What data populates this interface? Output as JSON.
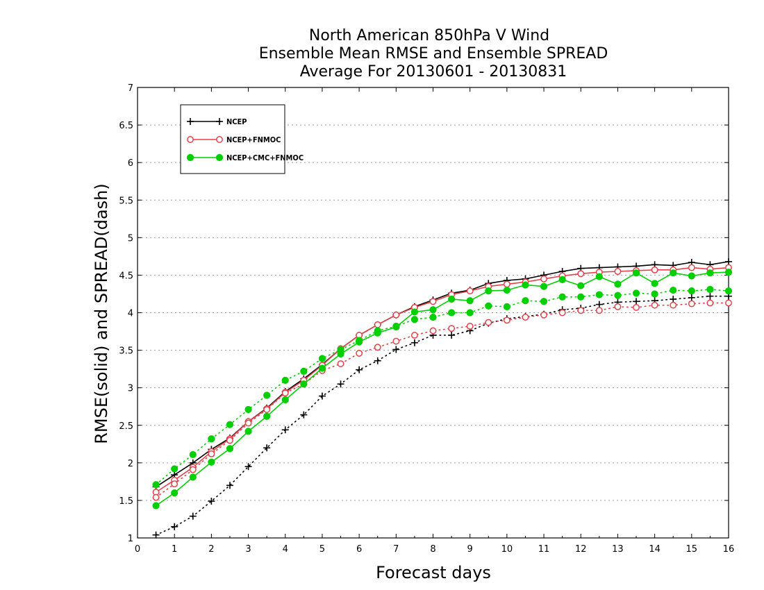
{
  "chart_data": {
    "type": "line",
    "title": [
      "North American 850hPa V Wind",
      "Ensemble Mean RMSE and Ensemble SPREAD",
      "Average For 20130601 - 20130831"
    ],
    "xlabel": "Forecast days",
    "ylabel": "RMSE(solid) and SPREAD(dash)",
    "xlim": [
      0,
      16
    ],
    "ylim": [
      1,
      7
    ],
    "x_ticks": [
      "0",
      "1",
      "2",
      "3",
      "4",
      "5",
      "6",
      "7",
      "8",
      "9",
      "10",
      "11",
      "12",
      "13",
      "14",
      "15",
      "16"
    ],
    "y_ticks": [
      "1",
      "1.5",
      "2",
      "2.5",
      "3",
      "3.5",
      "4",
      "4.5",
      "5",
      "5.5",
      "6",
      "6.5",
      "7"
    ],
    "grid": true,
    "legend_position": "top-left",
    "x": [
      0.5,
      1,
      1.5,
      2,
      2.5,
      3,
      3.5,
      4,
      4.5,
      5,
      5.5,
      6,
      6.5,
      7,
      7.5,
      8,
      8.5,
      9,
      9.5,
      10,
      10.5,
      11,
      11.5,
      12,
      12.5,
      13,
      13.5,
      14,
      14.5,
      15,
      15.5,
      16
    ],
    "series": [
      {
        "name": "NCEP",
        "color": "#000000",
        "marker": "plus",
        "rmse": [
          1.68,
          1.84,
          2.0,
          2.18,
          2.33,
          2.55,
          2.73,
          2.95,
          3.12,
          3.31,
          3.52,
          3.7,
          3.84,
          3.97,
          4.08,
          4.17,
          4.26,
          4.3,
          4.39,
          4.43,
          4.45,
          4.5,
          4.55,
          4.59,
          4.6,
          4.61,
          4.62,
          4.64,
          4.63,
          4.67,
          4.64,
          4.68
        ],
        "spread": [
          1.04,
          1.15,
          1.29,
          1.49,
          1.7,
          1.95,
          2.2,
          2.44,
          2.64,
          2.89,
          3.05,
          3.24,
          3.36,
          3.51,
          3.6,
          3.7,
          3.7,
          3.76,
          3.86,
          3.92,
          3.95,
          3.98,
          4.04,
          4.06,
          4.11,
          4.14,
          4.15,
          4.16,
          4.18,
          4.2,
          4.22,
          4.22
        ]
      },
      {
        "name": "NCEP+FNMOC",
        "color": "#e8404a",
        "marker": "open-circle",
        "rmse": [
          1.61,
          1.77,
          1.94,
          2.15,
          2.32,
          2.55,
          2.72,
          2.94,
          3.1,
          3.3,
          3.52,
          3.7,
          3.84,
          3.97,
          4.07,
          4.15,
          4.24,
          4.29,
          4.35,
          4.38,
          4.41,
          4.45,
          4.49,
          4.52,
          4.54,
          4.55,
          4.56,
          4.57,
          4.57,
          4.6,
          4.58,
          4.6
        ],
        "spread": [
          1.54,
          1.72,
          1.91,
          2.12,
          2.3,
          2.53,
          2.71,
          2.93,
          3.05,
          3.23,
          3.32,
          3.46,
          3.54,
          3.62,
          3.7,
          3.76,
          3.79,
          3.82,
          3.87,
          3.9,
          3.94,
          3.97,
          4.0,
          4.03,
          4.03,
          4.08,
          4.07,
          4.1,
          4.1,
          4.12,
          4.13,
          4.13
        ]
      },
      {
        "name": "NCEP+CMC+FNMOC",
        "color": "#00d000",
        "marker": "filled-circle",
        "rmse": [
          1.43,
          1.6,
          1.81,
          2.01,
          2.19,
          2.42,
          2.62,
          2.84,
          3.05,
          3.26,
          3.45,
          3.61,
          3.73,
          3.81,
          4.01,
          4.04,
          4.18,
          4.16,
          4.29,
          4.3,
          4.37,
          4.35,
          4.44,
          4.36,
          4.48,
          4.38,
          4.53,
          4.39,
          4.53,
          4.49,
          4.53,
          4.54
        ],
        "spread": [
          1.71,
          1.92,
          2.11,
          2.32,
          2.51,
          2.71,
          2.9,
          3.1,
          3.22,
          3.39,
          3.51,
          3.63,
          3.76,
          3.82,
          3.91,
          3.94,
          4.0,
          4.0,
          4.09,
          4.08,
          4.16,
          4.15,
          4.21,
          4.21,
          4.24,
          4.23,
          4.26,
          4.25,
          4.3,
          4.29,
          4.31,
          4.29
        ]
      }
    ]
  }
}
